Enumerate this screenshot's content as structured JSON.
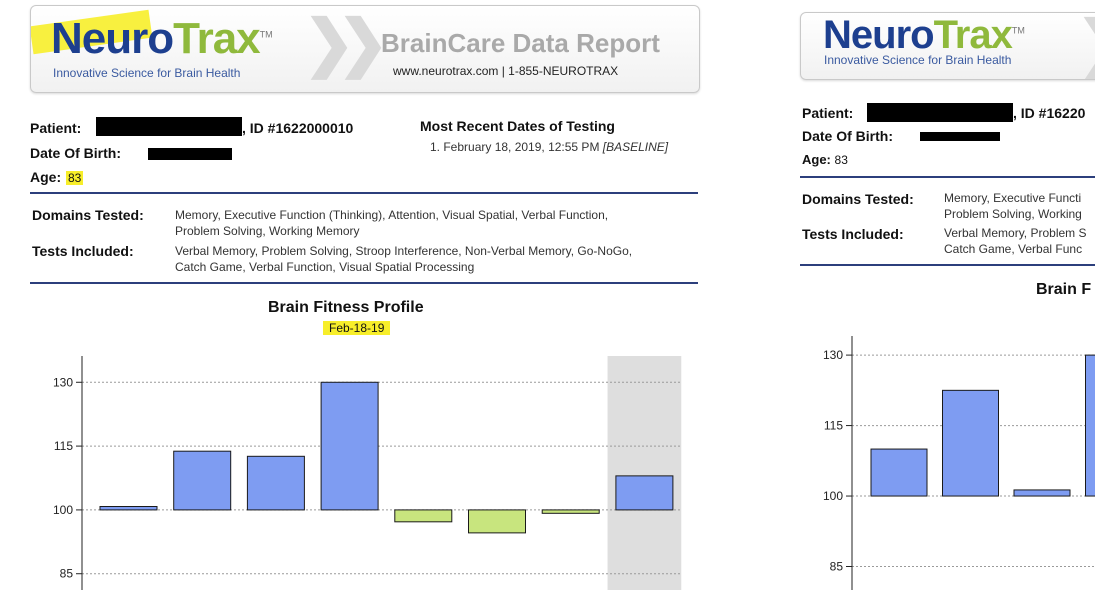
{
  "brand": {
    "logo_left": "N",
    "logo_mid": "euro",
    "logo_right": "Trax",
    "tm": "TM",
    "tagline": "Innovative Science for Brain Health"
  },
  "report": {
    "title": "BrainCare Data Report",
    "contact": "www.neurotrax.com | 1-855-NEUROTRAX"
  },
  "patient": {
    "patient_label": "Patient:",
    "id_text": ", ID #1622000010",
    "id_text_right": ", ID #16220",
    "dob_label": "Date Of Birth:",
    "age_label": "Age:",
    "age_value": "83"
  },
  "testing": {
    "heading": "Most Recent Dates of Testing",
    "item": "1. February 18, 2019, 12:55 PM",
    "item_tag": "[BASELINE]"
  },
  "domains": {
    "label": "Domains Tested:",
    "line1": "Memory, Executive Function (Thinking), Attention, Visual Spatial, Verbal Function,",
    "line2": "Problem Solving, Working Memory",
    "line1_right": "Memory, Executive Functi",
    "line2_right": "Problem Solving, Working"
  },
  "tests": {
    "label": "Tests Included:",
    "line1": "Verbal Memory, Problem Solving, Stroop Interference, Non-Verbal Memory, Go-NoGo,",
    "line2": "Catch Game, Verbal Function, Visual Spatial Processing",
    "line1_right": "Verbal Memory, Problem S",
    "line2_right": "Catch Game, Verbal Func"
  },
  "chart_title_left": "Brain Fitness Profile",
  "chart_title_right": "Brain F",
  "colors": {
    "above": "#7e9cf2",
    "below": "#c8e57e",
    "rule": "#2c3f7c",
    "highlight": "#f7ee2a",
    "shade": "#dedede"
  },
  "chart_data": [
    {
      "type": "bar",
      "title": "Brain Fitness Profile",
      "subtitle": "Feb-18-19",
      "baseline": 100,
      "ylim": [
        80,
        135
      ],
      "yticks": [
        85,
        100,
        115,
        130
      ],
      "values": [
        100.8,
        113.8,
        112.6,
        130,
        97.2,
        94.6,
        99.2,
        108
      ],
      "shaded_index": 7,
      "grid": true
    },
    {
      "type": "bar",
      "title": "Brain F",
      "baseline": 100,
      "ylim": [
        80,
        133
      ],
      "yticks": [
        85,
        100,
        115,
        130
      ],
      "values": [
        110,
        122.5,
        101.3,
        130
      ],
      "grid": true
    }
  ]
}
